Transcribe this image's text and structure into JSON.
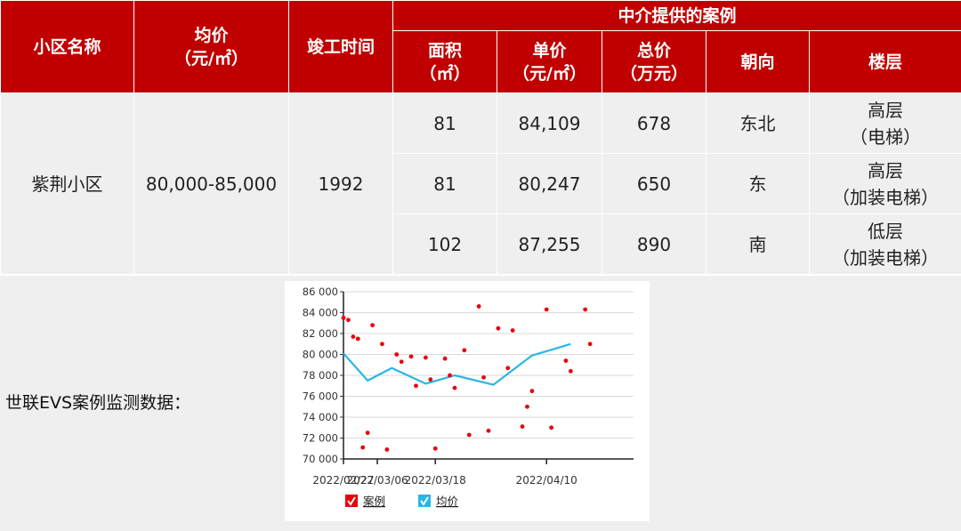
{
  "colors": {
    "header_bg": "#c00000",
    "body_bg": "#efefef",
    "point": "#e8000b",
    "line": "#29b6e8"
  },
  "table": {
    "headers": {
      "name": "小区名称",
      "avg_price_line1": "均价",
      "avg_price_line2": "（元/㎡）",
      "completion": "竣工时间",
      "agent_cases": "中介提供的案例",
      "area_line1": "面积",
      "area_line2": "（㎡）",
      "unit_price_line1": "单价",
      "unit_price_line2": "（元/㎡）",
      "total_price_line1": "总价",
      "total_price_line2": "（万元）",
      "orientation": "朝向",
      "floor": "楼层"
    },
    "community": "紫荆小区",
    "avg_price": "80,000-85,000",
    "completion_year": "1992",
    "cases": [
      {
        "area": "81",
        "unit_price": "84,109",
        "total": "678",
        "orientation": "东北",
        "floor_line1": "高层",
        "floor_line2": "（电梯）"
      },
      {
        "area": "81",
        "unit_price": "80,247",
        "total": "650",
        "orientation": "东",
        "floor_line1": "高层",
        "floor_line2": "（加装电梯）"
      },
      {
        "area": "102",
        "unit_price": "87,255",
        "total": "890",
        "orientation": "南",
        "floor_line1": "低层",
        "floor_line2": "（加装电梯）"
      }
    ]
  },
  "monitor_label": "世联EVS案例监测数据：",
  "chart_data": {
    "type": "scatter",
    "ylim": [
      70000,
      86000
    ],
    "yticks": [
      70000,
      72000,
      74000,
      76000,
      78000,
      80000,
      82000,
      84000,
      86000
    ],
    "ytick_labels": [
      "70 000",
      "72 000",
      "74 000",
      "76 000",
      "78 000",
      "80 000",
      "82 000",
      "84 000",
      "86 000"
    ],
    "xlim": [
      "2022-02-27",
      "2022-04-28"
    ],
    "xticks": [
      "2022-02-27",
      "2022-03-06",
      "2022-03-18",
      "2022-04-10"
    ],
    "xtick_labels": [
      "2022/02/27",
      "2022/03/06",
      "2022/03/18",
      "2022/04/10"
    ],
    "legend": [
      {
        "name": "案例",
        "color": "#e8000b"
      },
      {
        "name": "均价",
        "color": "#29b6e8"
      }
    ],
    "series": [
      {
        "name": "案例",
        "kind": "scatter",
        "points": [
          {
            "x": "2022-02-27",
            "y": 83500
          },
          {
            "x": "2022-02-28",
            "y": 83300
          },
          {
            "x": "2022-03-01",
            "y": 81700
          },
          {
            "x": "2022-03-02",
            "y": 81500
          },
          {
            "x": "2022-03-03",
            "y": 71100
          },
          {
            "x": "2022-03-04",
            "y": 72500
          },
          {
            "x": "2022-03-05",
            "y": 82800
          },
          {
            "x": "2022-03-07",
            "y": 81000
          },
          {
            "x": "2022-03-08",
            "y": 70900
          },
          {
            "x": "2022-03-10",
            "y": 80000
          },
          {
            "x": "2022-03-11",
            "y": 79300
          },
          {
            "x": "2022-03-13",
            "y": 79800
          },
          {
            "x": "2022-03-14",
            "y": 77000
          },
          {
            "x": "2022-03-16",
            "y": 79700
          },
          {
            "x": "2022-03-17",
            "y": 77600
          },
          {
            "x": "2022-03-18",
            "y": 71000
          },
          {
            "x": "2022-03-20",
            "y": 79600
          },
          {
            "x": "2022-03-21",
            "y": 78000
          },
          {
            "x": "2022-03-22",
            "y": 76800
          },
          {
            "x": "2022-03-24",
            "y": 80400
          },
          {
            "x": "2022-03-25",
            "y": 72300
          },
          {
            "x": "2022-03-27",
            "y": 84600
          },
          {
            "x": "2022-03-28",
            "y": 77800
          },
          {
            "x": "2022-03-29",
            "y": 72700
          },
          {
            "x": "2022-03-31",
            "y": 82500
          },
          {
            "x": "2022-04-02",
            "y": 78700
          },
          {
            "x": "2022-04-03",
            "y": 82300
          },
          {
            "x": "2022-04-05",
            "y": 73100
          },
          {
            "x": "2022-04-06",
            "y": 75000
          },
          {
            "x": "2022-04-07",
            "y": 76500
          },
          {
            "x": "2022-04-10",
            "y": 84300
          },
          {
            "x": "2022-04-11",
            "y": 73000
          },
          {
            "x": "2022-04-14",
            "y": 79400
          },
          {
            "x": "2022-04-15",
            "y": 78400
          },
          {
            "x": "2022-04-18",
            "y": 84300
          },
          {
            "x": "2022-04-19",
            "y": 81000
          }
        ]
      },
      {
        "name": "均价",
        "kind": "line",
        "points": [
          {
            "x": "2022-02-27",
            "y": 80100
          },
          {
            "x": "2022-03-04",
            "y": 77500
          },
          {
            "x": "2022-03-09",
            "y": 78700
          },
          {
            "x": "2022-03-16",
            "y": 77200
          },
          {
            "x": "2022-03-22",
            "y": 78000
          },
          {
            "x": "2022-03-30",
            "y": 77100
          },
          {
            "x": "2022-04-07",
            "y": 79900
          },
          {
            "x": "2022-04-15",
            "y": 81000
          }
        ]
      }
    ]
  }
}
